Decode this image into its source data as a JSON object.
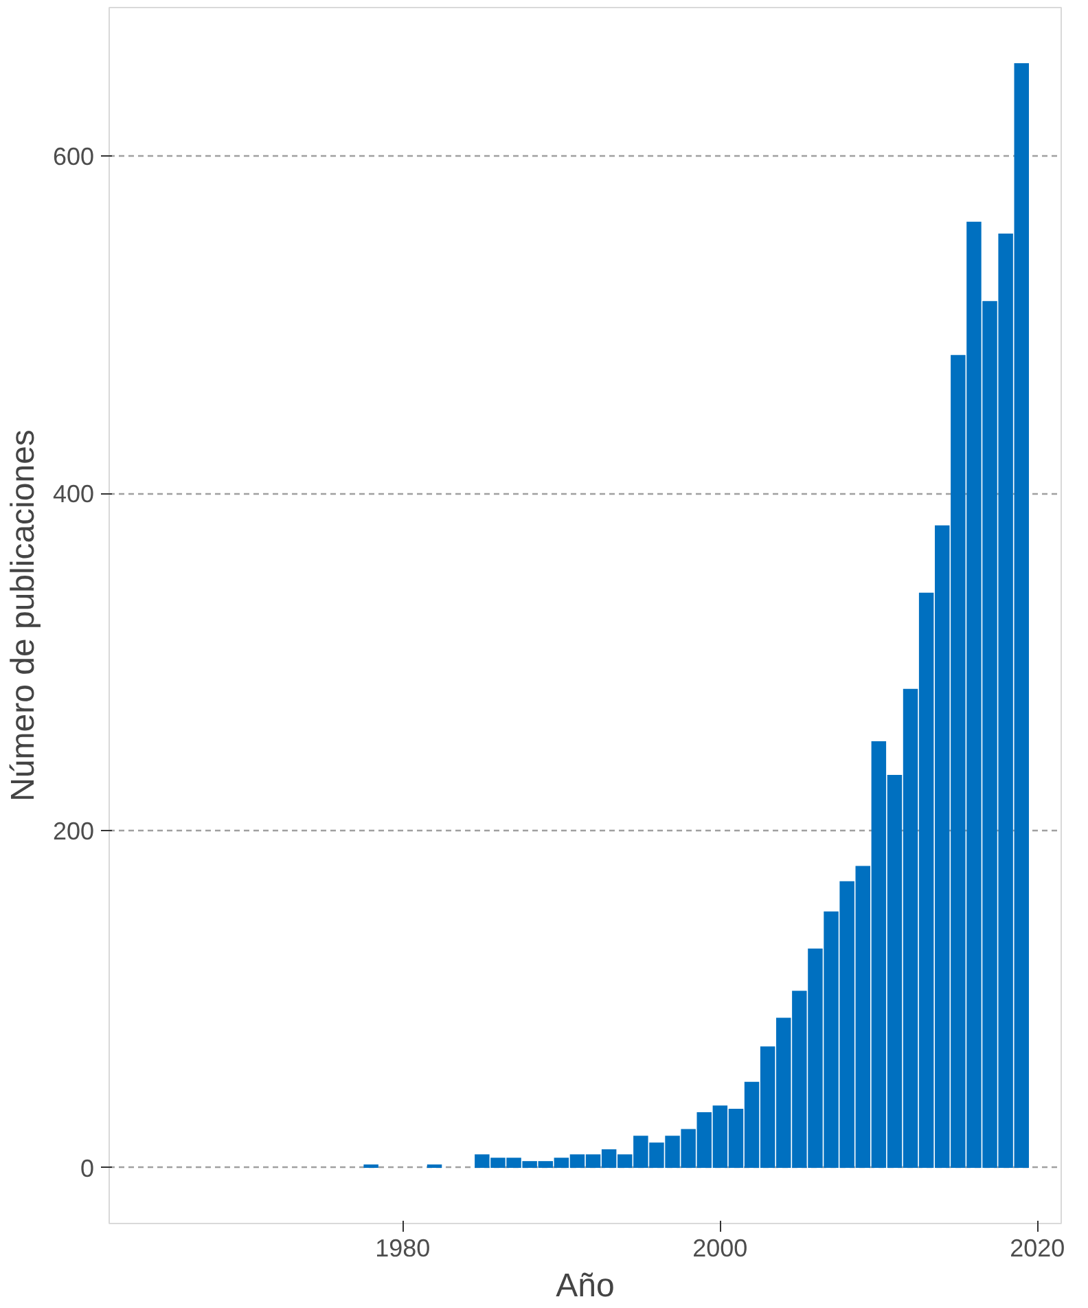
{
  "chart_data": {
    "type": "bar",
    "xlabel": "Año",
    "ylabel": "Número de publicaciones",
    "color": "#0070c0",
    "x": [
      1978,
      1982,
      1985,
      1986,
      1987,
      1988,
      1989,
      1990,
      1991,
      1992,
      1993,
      1994,
      1995,
      1996,
      1997,
      1998,
      1999,
      2000,
      2001,
      2002,
      2003,
      2004,
      2005,
      2006,
      2007,
      2008,
      2009,
      2010,
      2011,
      2012,
      2013,
      2014,
      2015,
      2016,
      2017,
      2018,
      2019
    ],
    "values": [
      2,
      2,
      8,
      6,
      6,
      4,
      4,
      6,
      8,
      8,
      11,
      8,
      19,
      15,
      19,
      23,
      33,
      37,
      35,
      51,
      72,
      89,
      105,
      130,
      152,
      170,
      179,
      253,
      233,
      284,
      341,
      381,
      482,
      561,
      514,
      554,
      655
    ],
    "xlim": [
      1961.5,
      2021.5
    ],
    "ylim": [
      -33,
      688
    ],
    "xticks": [
      1980,
      2000,
      2020
    ],
    "yticks": [
      0,
      200,
      400,
      600
    ],
    "grid": "y"
  }
}
